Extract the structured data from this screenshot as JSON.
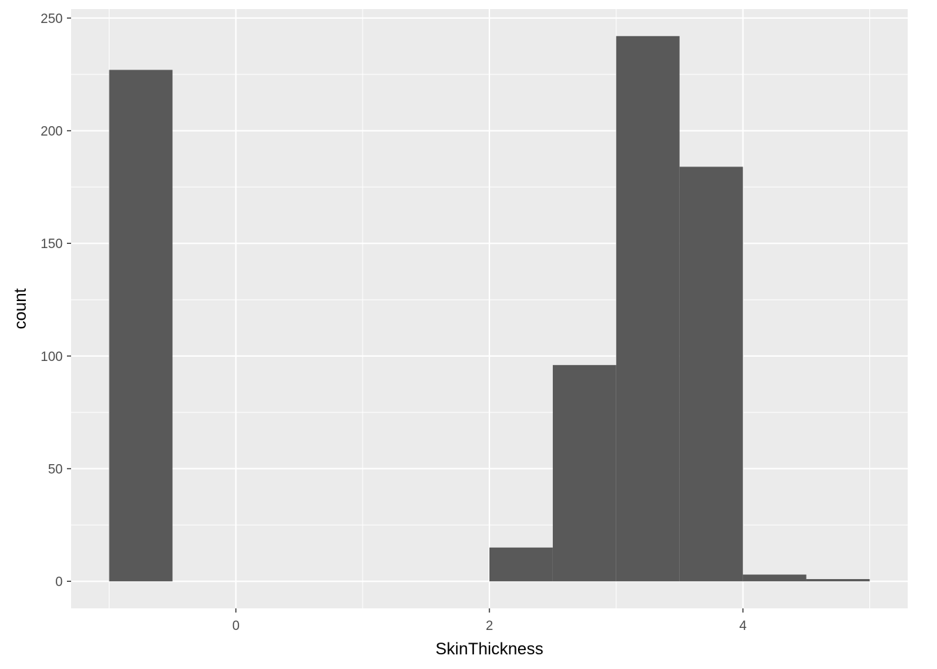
{
  "chart_data": {
    "type": "bar",
    "subtype": "histogram",
    "xlabel": "SkinThickness",
    "ylabel": "count",
    "xlim": [
      -1.3,
      5.3
    ],
    "ylim": [
      -12,
      254
    ],
    "x_ticks": [
      0,
      2,
      4
    ],
    "y_ticks": [
      0,
      50,
      100,
      150,
      200,
      250
    ],
    "grid": true,
    "bins": [
      {
        "x0": -1.0,
        "x1": -0.5,
        "count": 227
      },
      {
        "x0": -0.5,
        "x1": 0.0,
        "count": 0
      },
      {
        "x0": 0.0,
        "x1": 0.5,
        "count": 0
      },
      {
        "x0": 0.5,
        "x1": 1.0,
        "count": 0
      },
      {
        "x0": 1.0,
        "x1": 1.5,
        "count": 0
      },
      {
        "x0": 1.5,
        "x1": 2.0,
        "count": 0
      },
      {
        "x0": 2.0,
        "x1": 2.5,
        "count": 15
      },
      {
        "x0": 2.5,
        "x1": 3.0,
        "count": 96
      },
      {
        "x0": 3.0,
        "x1": 3.5,
        "count": 242
      },
      {
        "x0": 3.5,
        "x1": 4.0,
        "count": 184
      },
      {
        "x0": 4.0,
        "x1": 4.5,
        "count": 3
      },
      {
        "x0": 4.5,
        "x1": 5.0,
        "count": 1
      }
    ],
    "colors": {
      "panel": "#ebebeb",
      "grid_major": "#ffffff",
      "bar": "#595959"
    }
  }
}
